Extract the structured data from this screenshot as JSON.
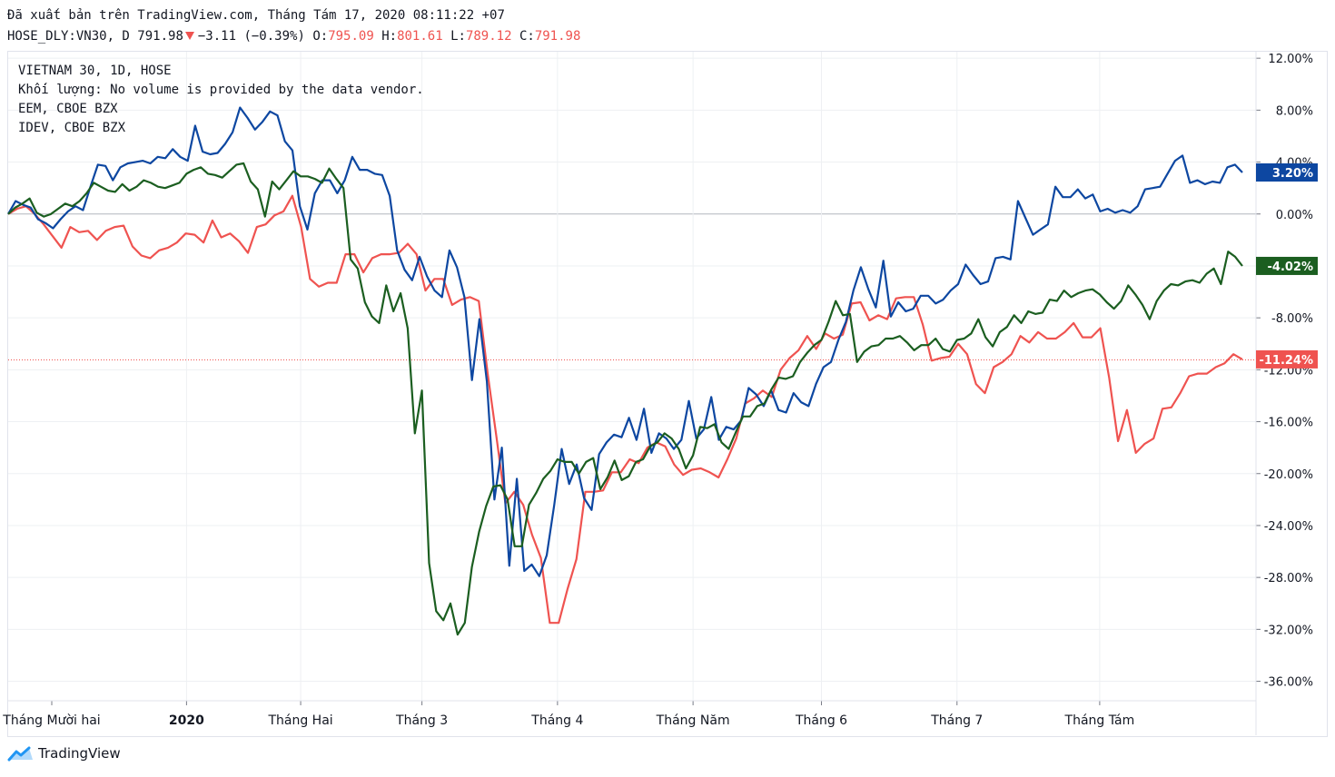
{
  "header": {
    "published": "Đã xuất bản trên TradingView.com, Tháng Tám 17, 2020 08:11:22 +07",
    "symbol": "HOSE_DLY:VN30, D",
    "last": "791.98",
    "change": "−3.11 (−0.39%)",
    "open_label": "O:",
    "open": "795.09",
    "high_label": "H:",
    "high": "801.61",
    "low_label": "L:",
    "low": "789.12",
    "close_label": "C:",
    "close": "791.98"
  },
  "legend": {
    "line1": "VIETNAM 30, 1D, HOSE",
    "line2": "Khối lượng: No volume is provided by the data vendor.",
    "line3": "EEM, CBOE BZX",
    "line4": "IDEV, CBOE BZX"
  },
  "brand": {
    "name": "TradingView"
  },
  "colors": {
    "vn30": "#ef5350",
    "eem": "#0d47a1",
    "idev": "#1b5e20",
    "grid": "#eef0f3",
    "axis": "#131722"
  },
  "chart_data": {
    "type": "line",
    "ylabel_unit": "%",
    "ylim": [
      -37.5,
      12.5
    ],
    "y_ticks": [
      12,
      8,
      4,
      0,
      -4,
      -8,
      -12,
      -16,
      -20,
      -24,
      -28,
      -32,
      -36
    ],
    "y_tick_labels": [
      "12.00%",
      "8.00%",
      "4.00%",
      "0.00%",
      "-4.00%",
      "-8.00%",
      "-12.00%",
      "-16.00%",
      "-20.00%",
      "-24.00%",
      "-28.00%",
      "-32.00%",
      "-36.00%"
    ],
    "x_tick_labels": [
      "Tháng Mười hai",
      "2020",
      "Tháng Hai",
      "Tháng 3",
      "Tháng 4",
      "Tháng Năm",
      "Tháng 6",
      "Tháng 7",
      "Tháng Tám"
    ],
    "x_tick_index": [
      -1,
      25,
      41,
      58,
      77,
      96,
      114,
      133,
      153
    ],
    "grid": true,
    "series": [
      {
        "name": "VIETNAM 30",
        "color": "#ef5350",
        "last_label": "-11.24%",
        "values": [
          0,
          0.4,
          0.6,
          0,
          -0.8,
          -1.7,
          -2.6,
          -1,
          -1.4,
          -1.3,
          -2,
          -1.3,
          -1,
          -0.9,
          -2.5,
          -3.2,
          -3.4,
          -2.8,
          -2.6,
          -2.2,
          -1.5,
          -1.6,
          -2.2,
          -0.5,
          -1.8,
          -1.5,
          -2.1,
          -3,
          -1,
          -0.8,
          -0.1,
          0.2,
          1.4,
          -1,
          -5,
          -5.6,
          -5.3,
          -5.3,
          -3.1,
          -3.1,
          -4.5,
          -3.4,
          -3.1,
          -3.1,
          -3,
          -2.3,
          -3.1,
          -5.9,
          -5,
          -5,
          -7,
          -6.6,
          -6.4,
          -6.7,
          -12.3,
          -17.2,
          -22.3,
          -21.4,
          -22.4,
          -24.7,
          -26.5,
          -31.5,
          -31.5,
          -28.9,
          -26.6,
          -21.4,
          -21.4,
          -21.3,
          -19.9,
          -19.9,
          -18.9,
          -19.2,
          -18,
          -17.6,
          -17.9,
          -19.3,
          -20.1,
          -19.7,
          -19.6,
          -19.9,
          -20.3,
          -18.9,
          -17.3,
          -14.6,
          -14.2,
          -13.6,
          -14.1,
          -12,
          -11.1,
          -10.5,
          -9.4,
          -10.4,
          -9.2,
          -9.6,
          -9.3,
          -6.9,
          -6.8,
          -8.2,
          -7.8,
          -8.1,
          -6.5,
          -6.4,
          -6.4,
          -8.5,
          -11.3,
          -11.1,
          -11,
          -10,
          -10.8,
          -13.1,
          -13.8,
          -11.8,
          -11.4,
          -10.8,
          -9.4,
          -9.9,
          -9.1,
          -9.6,
          -9.6,
          -9.1,
          -8.4,
          -9.5,
          -9.5,
          -8.8,
          -12.6,
          -17.5,
          -15.1,
          -18.4,
          -17.7,
          -17.3,
          -15,
          -14.9,
          -13.8,
          -12.5,
          -12.3,
          -12.3,
          -11.8,
          -11.5,
          -10.8,
          -11.2
        ]
      },
      {
        "name": "EEM",
        "color": "#0d47a1",
        "last_label": "3.20%",
        "values": [
          0,
          1,
          0.7,
          0.5,
          -0.4,
          -0.7,
          -1.1,
          -0.4,
          0.2,
          0.6,
          0.3,
          2.1,
          3.8,
          3.7,
          2.6,
          3.6,
          3.9,
          4,
          4.1,
          3.9,
          4.4,
          4.3,
          5,
          4.4,
          4.1,
          6.8,
          4.8,
          4.6,
          4.7,
          5.4,
          6.3,
          8.2,
          7.4,
          6.5,
          7.1,
          7.9,
          7.6,
          5.6,
          4.9,
          0.6,
          -1.2,
          1.6,
          2.6,
          2.6,
          1.6,
          2.6,
          4.4,
          3.4,
          3.4,
          3.1,
          3,
          1.4,
          -2.8,
          -4.3,
          -5.1,
          -3.3,
          -4.8,
          -5.9,
          -6.4,
          -2.8,
          -4.1,
          -6.4,
          -12.8,
          -8.1,
          -12.9,
          -22,
          -18,
          -27.1,
          -20.4,
          -27.5,
          -27,
          -27.9,
          -26.3,
          -22.4,
          -18.1,
          -20.8,
          -19.3,
          -21.9,
          -22.8,
          -18.5,
          -17.6,
          -17,
          -17.2,
          -15.7,
          -17.4,
          -15,
          -18.4,
          -16.9,
          -17.3,
          -18.1,
          -17.4,
          -14.4,
          -17.3,
          -16.6,
          -14.1,
          -17.4,
          -16.4,
          -16.6,
          -15.9,
          -13.4,
          -13.9,
          -14.8,
          -13.6,
          -15.1,
          -15.3,
          -13.8,
          -14.5,
          -14.8,
          -13.1,
          -11.8,
          -11.4,
          -9.7,
          -8.3,
          -5.9,
          -4.1,
          -5.8,
          -7.2,
          -3.6,
          -7.9,
          -6.8,
          -7.5,
          -7.3,
          -6.3,
          -6.3,
          -6.9,
          -6.6,
          -5.9,
          -5.4,
          -3.9,
          -4.7,
          -5.4,
          -5.2,
          -3.4,
          -3.3,
          -3.5,
          1,
          -0.3,
          -1.6,
          -1.2,
          -0.8,
          2.1,
          1.3,
          1.3,
          1.9,
          1.2,
          1.5,
          0.2,
          0.4,
          0.1,
          0.3,
          0.1,
          0.6,
          1.9,
          2,
          2.1,
          3.1,
          4.1,
          4.5,
          2.4,
          2.6,
          2.3,
          2.5,
          2.4,
          3.6,
          3.8,
          3.2
        ]
      },
      {
        "name": "IDEV",
        "color": "#1b5e20",
        "last_label": "-4.02%",
        "values": [
          0,
          0.5,
          0.8,
          1.2,
          0.1,
          -0.2,
          0,
          0.4,
          0.8,
          0.6,
          1,
          1.6,
          2.4,
          2.1,
          1.8,
          1.7,
          2.3,
          1.8,
          2.1,
          2.6,
          2.4,
          2.1,
          2,
          2.2,
          2.4,
          3.1,
          3.4,
          3.6,
          3.1,
          3,
          2.8,
          3.3,
          3.8,
          3.9,
          2.5,
          1.9,
          -0.2,
          2.5,
          1.9,
          2.6,
          3.3,
          2.9,
          2.9,
          2.7,
          2.4,
          3.5,
          2.7,
          2,
          -3.5,
          -4.2,
          -6.8,
          -7.9,
          -8.4,
          -5.5,
          -7.5,
          -6.1,
          -8.8,
          -16.9,
          -13.6,
          -26.9,
          -30.6,
          -31.3,
          -30,
          -32.4,
          -31.5,
          -27.2,
          -24.5,
          -22.5,
          -21,
          -20.9,
          -22,
          -25.6,
          -25.6,
          -22.4,
          -21.5,
          -20.4,
          -19.8,
          -18.9,
          -19.1,
          -19.1,
          -20,
          -19.1,
          -18.8,
          -21.2,
          -20.3,
          -19,
          -20.5,
          -20.2,
          -19.1,
          -18.9,
          -17.9,
          -17.6,
          -16.9,
          -17.3,
          -18.1,
          -19.6,
          -18.6,
          -16.4,
          -16.5,
          -16.2,
          -17.6,
          -18.1,
          -16.8,
          -15.6,
          -15.6,
          -14.8,
          -14.6,
          -13.5,
          -12.6,
          -12.7,
          -12.5,
          -11.4,
          -10.7,
          -10.1,
          -9.7,
          -8.3,
          -6.7,
          -7.8,
          -7.7,
          -11.4,
          -10.6,
          -10.2,
          -10.1,
          -9.6,
          -9.6,
          -9.4,
          -9.9,
          -10.5,
          -10.1,
          -10.1,
          -9.6,
          -10.4,
          -10.6,
          -9.7,
          -9.6,
          -9.2,
          -8.1,
          -9.5,
          -10.2,
          -9.1,
          -8.7,
          -7.8,
          -8.4,
          -7.5,
          -7.7,
          -7.6,
          -6.6,
          -6.7,
          -5.9,
          -6.4,
          -6.1,
          -5.9,
          -5.8,
          -6.2,
          -6.8,
          -7.3,
          -6.7,
          -5.5,
          -6.2,
          -7,
          -8.1,
          -6.7,
          -5.9,
          -5.4,
          -5.5,
          -5.2,
          -5.1,
          -5.3,
          -4.6,
          -4.2,
          -5.4,
          -2.9,
          -3.3,
          -4
        ]
      }
    ],
    "reference_line": -11.24
  }
}
